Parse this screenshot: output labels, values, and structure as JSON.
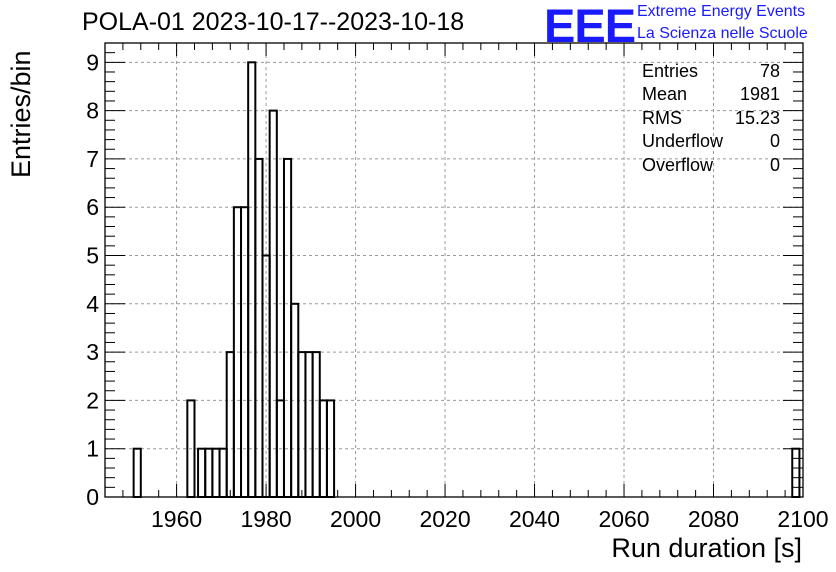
{
  "title": "POLA-01 2023-10-17--2023-10-18",
  "logo": {
    "mark": "EEE",
    "line1": "Extreme Energy Events",
    "line2": "La Scienza nelle Scuole"
  },
  "stats": [
    {
      "label": "Entries",
      "value": "78"
    },
    {
      "label": "Mean",
      "value": "1981"
    },
    {
      "label": "RMS",
      "value": "15.23"
    },
    {
      "label": "Underflow",
      "value": "0"
    },
    {
      "label": "Overflow",
      "value": "0"
    }
  ],
  "colors": {
    "line": "#000000",
    "grid": "#9a9a9a",
    "logo": "#1a1aff"
  },
  "chart_data": {
    "type": "bar",
    "style": "step histogram",
    "title": "POLA-01 2023-10-17--2023-10-18",
    "xlabel": "Run duration [s]",
    "ylabel": "Entries/bin",
    "xlim": [
      1944,
      2100
    ],
    "ylim": [
      0,
      9.4
    ],
    "grid": true,
    "x_ticks": [
      1960,
      1980,
      2000,
      2020,
      2040,
      2060,
      2080,
      2100
    ],
    "y_ticks": [
      0,
      1,
      2,
      3,
      4,
      5,
      6,
      7,
      8,
      9
    ],
    "bin_width": 1.6,
    "bins": [
      {
        "x": 1950.4,
        "value": 1
      },
      {
        "x": 1962.4,
        "value": 2
      },
      {
        "x": 1964.8,
        "value": 1
      },
      {
        "x": 1966.4,
        "value": 1
      },
      {
        "x": 1968.0,
        "value": 1
      },
      {
        "x": 1969.6,
        "value": 1
      },
      {
        "x": 1971.2,
        "value": 3
      },
      {
        "x": 1972.8,
        "value": 6
      },
      {
        "x": 1974.4,
        "value": 6
      },
      {
        "x": 1976.0,
        "value": 9
      },
      {
        "x": 1977.6,
        "value": 7
      },
      {
        "x": 1979.2,
        "value": 5
      },
      {
        "x": 1980.8,
        "value": 8
      },
      {
        "x": 1982.4,
        "value": 2
      },
      {
        "x": 1984.0,
        "value": 7
      },
      {
        "x": 1985.6,
        "value": 4
      },
      {
        "x": 1987.2,
        "value": 3
      },
      {
        "x": 1988.8,
        "value": 3
      },
      {
        "x": 1990.4,
        "value": 3
      },
      {
        "x": 1992.0,
        "value": 2
      },
      {
        "x": 1993.6,
        "value": 2
      },
      {
        "x": 2097.6,
        "value": 1
      }
    ]
  }
}
